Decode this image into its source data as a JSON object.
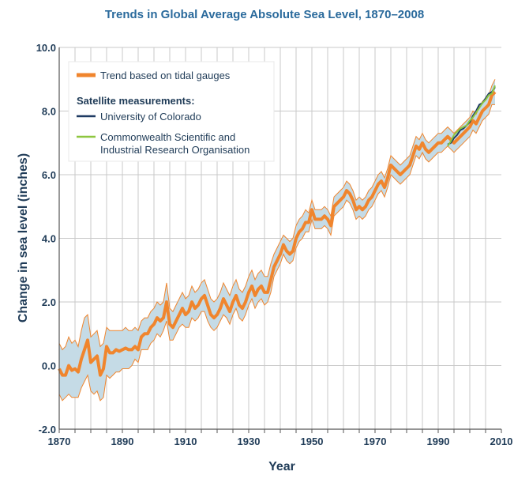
{
  "chart_data": {
    "type": "line",
    "title": "Trends in Global Average Absolute Sea Level, 1870–2008",
    "xlabel": "Year",
    "ylabel": "Change in sea level (inches)",
    "xlim": [
      1870,
      2010
    ],
    "ylim": [
      -2.0,
      10.0
    ],
    "x_ticks": [
      "1870",
      "1890",
      "1910",
      "1930",
      "1950",
      "1970",
      "1990",
      "2010"
    ],
    "x_tick_values": [
      1870,
      1890,
      1910,
      1930,
      1950,
      1970,
      1990,
      2010
    ],
    "y_ticks": [
      "-2.0",
      "0.0",
      "2.0",
      "4.0",
      "6.0",
      "8.0",
      "10.0"
    ],
    "y_tick_values": [
      -2,
      0,
      2,
      4,
      6,
      8,
      10
    ],
    "grid": true,
    "legend_position": "top-left",
    "legend": {
      "tidal": "Trend based on tidal gauges",
      "satellite_heading": "Satellite measurements:",
      "colorado": "University of Colorado",
      "csiro_line1": "Commonwealth Scientific and",
      "csiro_line2": "Industrial Research Organisation"
    },
    "colors": {
      "tidal": "#f0852d",
      "band": "#c5dbe6",
      "colorado": "#1f3b63",
      "csiro": "#8dc63f",
      "grid": "#c8c8c8",
      "text": "#1f3b57"
    },
    "series": [
      {
        "name": "Trend based on tidal gauges",
        "x": [
          1870,
          1871,
          1872,
          1873,
          1874,
          1875,
          1876,
          1877,
          1878,
          1879,
          1880,
          1881,
          1882,
          1883,
          1884,
          1885,
          1886,
          1887,
          1888,
          1889,
          1890,
          1891,
          1892,
          1893,
          1894,
          1895,
          1896,
          1897,
          1898,
          1899,
          1900,
          1901,
          1902,
          1903,
          1904,
          1905,
          1906,
          1907,
          1908,
          1909,
          1910,
          1911,
          1912,
          1913,
          1914,
          1915,
          1916,
          1917,
          1918,
          1919,
          1920,
          1921,
          1922,
          1923,
          1924,
          1925,
          1926,
          1927,
          1928,
          1929,
          1930,
          1931,
          1932,
          1933,
          1934,
          1935,
          1936,
          1937,
          1938,
          1939,
          1940,
          1941,
          1942,
          1943,
          1944,
          1945,
          1946,
          1947,
          1948,
          1949,
          1950,
          1951,
          1952,
          1953,
          1954,
          1955,
          1956,
          1957,
          1958,
          1959,
          1960,
          1961,
          1962,
          1963,
          1964,
          1965,
          1966,
          1967,
          1968,
          1969,
          1970,
          1971,
          1972,
          1973,
          1974,
          1975,
          1976,
          1977,
          1978,
          1979,
          1980,
          1981,
          1982,
          1983,
          1984,
          1985,
          1986,
          1987,
          1988,
          1989,
          1990,
          1991,
          1992,
          1993,
          1994,
          1995,
          1996,
          1997,
          1998,
          1999,
          2000,
          2001,
          2002,
          2003,
          2004,
          2005,
          2006,
          2007,
          2008
        ],
        "values": [
          -0.1,
          -0.3,
          -0.3,
          0.0,
          -0.15,
          -0.1,
          -0.2,
          0.2,
          0.5,
          0.8,
          0.1,
          0.2,
          0.3,
          -0.3,
          -0.1,
          0.6,
          0.4,
          0.4,
          0.5,
          0.45,
          0.5,
          0.55,
          0.5,
          0.5,
          0.6,
          0.5,
          0.9,
          1.0,
          1.0,
          1.2,
          1.3,
          1.5,
          1.4,
          1.5,
          2.0,
          1.3,
          1.2,
          1.4,
          1.6,
          1.8,
          1.6,
          1.7,
          2.0,
          1.8,
          1.9,
          2.1,
          2.2,
          1.9,
          1.6,
          1.5,
          1.6,
          1.8,
          2.1,
          1.9,
          1.7,
          2.0,
          2.2,
          1.9,
          1.8,
          2.0,
          2.3,
          2.5,
          2.2,
          2.4,
          2.5,
          2.3,
          2.3,
          2.7,
          3.1,
          3.3,
          3.5,
          3.8,
          3.6,
          3.5,
          3.6,
          4.0,
          4.2,
          4.3,
          4.5,
          4.5,
          4.9,
          4.6,
          4.6,
          4.6,
          4.7,
          4.6,
          4.4,
          5.0,
          5.1,
          5.2,
          5.3,
          5.5,
          5.4,
          5.2,
          4.9,
          5.0,
          4.9,
          5.0,
          5.2,
          5.3,
          5.5,
          5.7,
          5.8,
          5.6,
          5.9,
          6.3,
          6.2,
          6.1,
          6.0,
          6.1,
          6.2,
          6.3,
          6.6,
          6.9,
          6.8,
          7.0,
          6.8,
          6.7,
          6.8,
          6.9,
          7.0,
          7.0,
          7.1,
          7.2,
          7.1,
          7.0,
          7.1,
          7.2,
          7.3,
          7.4,
          7.5,
          7.7,
          7.6,
          7.8,
          8.0,
          8.1,
          8.2,
          8.5,
          8.6
        ],
        "lower": [
          -0.9,
          -1.1,
          -1.0,
          -0.9,
          -1.0,
          -1.0,
          -1.0,
          -0.7,
          -0.5,
          -0.3,
          -0.8,
          -0.9,
          -0.8,
          -1.1,
          -1.0,
          -0.3,
          -0.4,
          -0.3,
          -0.2,
          -0.2,
          -0.1,
          -0.1,
          -0.1,
          0.0,
          0.2,
          0.1,
          0.5,
          0.5,
          0.5,
          0.7,
          0.8,
          1.0,
          0.9,
          1.1,
          1.4,
          0.8,
          0.8,
          1.0,
          1.2,
          1.3,
          1.2,
          1.2,
          1.5,
          1.4,
          1.5,
          1.7,
          1.7,
          1.4,
          1.2,
          1.1,
          1.2,
          1.4,
          1.6,
          1.5,
          1.3,
          1.6,
          1.8,
          1.5,
          1.4,
          1.6,
          1.9,
          2.1,
          1.8,
          2.0,
          2.1,
          1.9,
          2.0,
          2.3,
          2.8,
          3.0,
          3.2,
          3.5,
          3.3,
          3.2,
          3.3,
          3.7,
          3.9,
          4.0,
          4.2,
          4.2,
          4.6,
          4.3,
          4.3,
          4.3,
          4.4,
          4.3,
          4.1,
          4.7,
          4.8,
          4.9,
          5.0,
          5.2,
          5.1,
          4.9,
          4.6,
          4.7,
          4.6,
          4.7,
          4.9,
          5.0,
          5.2,
          5.4,
          5.5,
          5.3,
          5.6,
          6.0,
          5.9,
          5.8,
          5.7,
          5.8,
          5.9,
          6.0,
          6.3,
          6.6,
          6.5,
          6.7,
          6.5,
          6.4,
          6.5,
          6.6,
          6.7,
          6.7,
          6.8,
          6.9,
          6.8,
          6.7,
          6.8,
          6.9,
          7.0,
          7.1,
          7.2,
          7.4,
          7.3,
          7.5,
          7.7,
          7.8,
          7.9,
          8.2,
          8.2
        ],
        "upper": [
          0.7,
          0.5,
          0.6,
          0.9,
          0.7,
          0.8,
          0.6,
          1.1,
          1.5,
          1.6,
          0.9,
          1.0,
          1.1,
          0.6,
          0.7,
          1.2,
          1.1,
          1.1,
          1.1,
          1.1,
          1.1,
          1.2,
          1.1,
          1.1,
          1.2,
          1.1,
          1.4,
          1.5,
          1.5,
          1.7,
          1.8,
          2.0,
          1.9,
          2.0,
          2.6,
          1.8,
          1.7,
          1.9,
          2.1,
          2.3,
          2.1,
          2.2,
          2.5,
          2.3,
          2.4,
          2.6,
          2.7,
          2.4,
          2.1,
          2.0,
          2.1,
          2.3,
          2.6,
          2.4,
          2.2,
          2.5,
          2.7,
          2.4,
          2.3,
          2.5,
          2.8,
          3.0,
          2.7,
          2.9,
          3.0,
          2.8,
          2.8,
          3.2,
          3.5,
          3.7,
          3.9,
          4.1,
          4.0,
          3.9,
          4.0,
          4.4,
          4.6,
          4.7,
          4.9,
          4.8,
          5.2,
          4.9,
          4.9,
          4.9,
          5.0,
          4.9,
          4.7,
          5.3,
          5.4,
          5.5,
          5.6,
          5.8,
          5.7,
          5.5,
          5.2,
          5.3,
          5.2,
          5.3,
          5.5,
          5.6,
          5.8,
          6.0,
          6.1,
          5.9,
          6.2,
          6.6,
          6.5,
          6.4,
          6.3,
          6.4,
          6.5,
          6.6,
          6.9,
          7.2,
          7.1,
          7.3,
          7.1,
          7.0,
          7.1,
          7.2,
          7.3,
          7.3,
          7.4,
          7.5,
          7.4,
          7.3,
          7.4,
          7.5,
          7.6,
          7.7,
          7.8,
          8.0,
          7.9,
          8.1,
          8.3,
          8.4,
          8.5,
          8.8,
          9.0
        ]
      },
      {
        "name": "University of Colorado",
        "x": [
          1993,
          1994,
          1995,
          1996,
          1997,
          1998,
          1999,
          2000,
          2001,
          2002,
          2003,
          2004,
          2005,
          2006,
          2007,
          2008
        ],
        "values": [
          6.95,
          7.0,
          7.15,
          7.25,
          7.4,
          7.45,
          7.55,
          7.65,
          7.85,
          8.0,
          8.2,
          8.25,
          8.4,
          8.55,
          8.6,
          8.75
        ]
      },
      {
        "name": "Commonwealth Scientific and Industrial Research Organisation",
        "x": [
          1993,
          1994,
          1995,
          1996,
          1997,
          1998,
          1999,
          2000,
          2001,
          2002,
          2003,
          2004,
          2005,
          2006,
          2007,
          2008
        ],
        "values": [
          6.9,
          7.05,
          7.25,
          7.35,
          7.45,
          7.5,
          7.55,
          7.7,
          7.8,
          7.95,
          8.1,
          8.25,
          8.35,
          8.5,
          8.55,
          8.8
        ]
      }
    ]
  }
}
